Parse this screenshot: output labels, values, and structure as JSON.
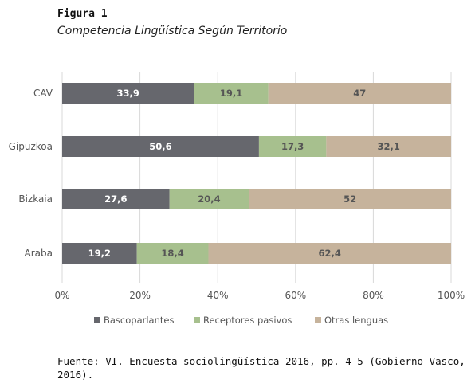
{
  "figure": {
    "label": "Figura 1",
    "title": "Competencia Lingüística Según Territorio",
    "caption": "Fuente: VI. Encuesta sociolingüística-2016, pp. 4-5 (Gobierno Vasco, 2016)."
  },
  "chart_data": {
    "type": "bar",
    "orientation": "horizontal",
    "stacked": true,
    "categories": [
      "CAV",
      "Gipuzkoa",
      "Bizkaia",
      "Araba"
    ],
    "series": [
      {
        "name": "Bascoparlantes",
        "values": [
          33.9,
          50.6,
          27.6,
          19.2
        ],
        "color": "#66676d",
        "value_labels": [
          "33,9",
          "50,6",
          "27,6",
          "19,2"
        ]
      },
      {
        "name": "Receptores pasivos",
        "values": [
          19.1,
          17.3,
          20.4,
          18.4
        ],
        "color": "#a7c08e",
        "value_labels": [
          "19,1",
          "17,3",
          "20,4",
          "18,4"
        ]
      },
      {
        "name": "Otras lenguas",
        "values": [
          47,
          32.1,
          52,
          62.4
        ],
        "color": "#c6b39c",
        "value_labels": [
          "47",
          "32,1",
          "52",
          "62,4"
        ]
      }
    ],
    "xlim": [
      0,
      100
    ],
    "x_ticks": [
      "0%",
      "20%",
      "40%",
      "60%",
      "80%",
      "100%"
    ],
    "grid": true,
    "legend_position": "bottom"
  }
}
